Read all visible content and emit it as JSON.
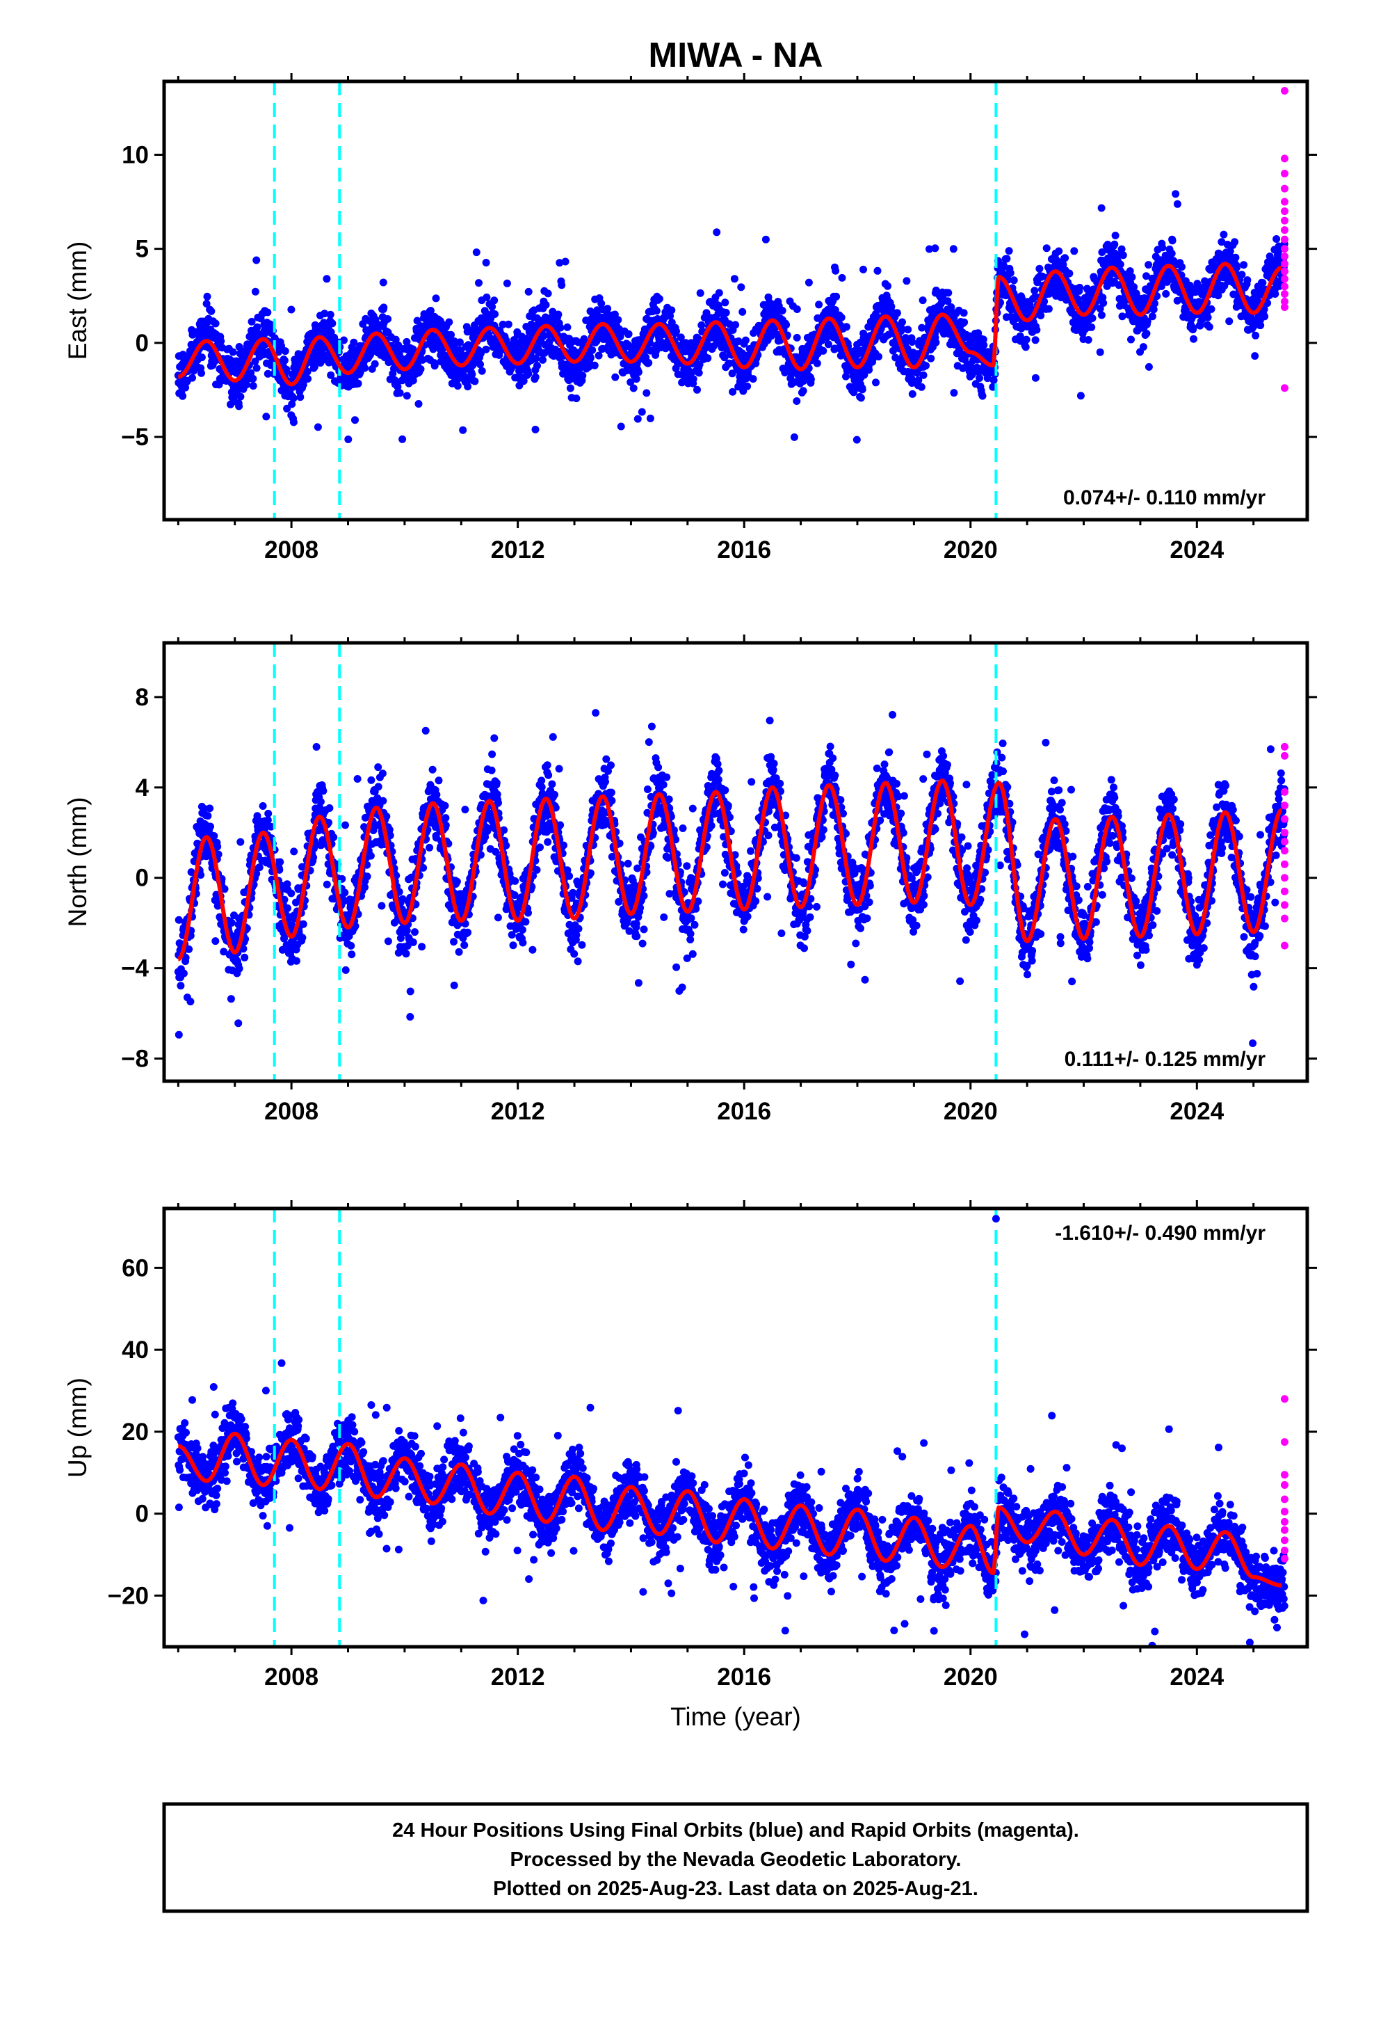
{
  "title": "MIWA - NA",
  "xlabel": "Time (year)",
  "footer": {
    "lines": [
      "24 Hour Positions Using Final Orbits (blue) and Rapid Orbits (magenta).",
      "Processed by the Nevada Geodetic Laboratory.",
      "Plotted on 2025-Aug-23. Last data on 2025-Aug-21."
    ]
  },
  "colors": {
    "final_orbits": "#0000ff",
    "rapid_orbits": "#ff00ff",
    "model_fit": "#ff0000",
    "equipment_change": "#00ffff",
    "frame": "#000000"
  },
  "chart_data": [
    {
      "type": "scatter",
      "component": "east",
      "ylabel": "East (mm)",
      "xlim": [
        2005.75,
        2025.95
      ],
      "ylim": [
        -9.4,
        13.9
      ],
      "x_ticks": [
        2008,
        2012,
        2016,
        2020,
        2024
      ],
      "y_ticks": [
        -5,
        0,
        5,
        10
      ],
      "rate_label": "0.074+/- 0.110 mm/yr",
      "rate_position": "bottom-right",
      "equipment_changes": [
        2007.7,
        2008.85,
        2020.45
      ],
      "rapid_points": [
        13.4,
        9.8,
        9.0,
        8.2,
        7.5,
        7.0,
        6.5,
        6.0,
        5.5,
        5.0,
        4.6,
        4.2,
        3.8,
        3.4,
        3.0,
        2.6,
        2.2,
        1.9,
        -2.4
      ],
      "series": [
        {
          "kind": "model",
          "x": [
            2006.0,
            2006.5,
            2007.0,
            2007.5,
            2008.0,
            2008.5,
            2009.0,
            2009.5,
            2010.0,
            2010.5,
            2011.0,
            2011.5,
            2012.0,
            2012.5,
            2013.0,
            2013.5,
            2014.0,
            2014.5,
            2015.0,
            2015.5,
            2016.0,
            2016.5,
            2017.0,
            2017.5,
            2018.0,
            2018.5,
            2019.0,
            2019.5,
            2020.0,
            2020.4,
            2020.5,
            2021.0,
            2021.5,
            2022.0,
            2022.5,
            2023.0,
            2023.5,
            2024.0,
            2024.5,
            2025.0,
            2025.5
          ],
          "values": [
            -1.8,
            0.1,
            -2.0,
            0.2,
            -2.2,
            0.3,
            -1.6,
            0.5,
            -1.4,
            0.7,
            -1.2,
            0.8,
            -1.1,
            0.9,
            -1.0,
            1.0,
            -1.0,
            1.0,
            -1.1,
            1.1,
            -1.3,
            1.2,
            -1.4,
            1.3,
            -1.3,
            1.4,
            -1.3,
            1.5,
            -0.5,
            -1.2,
            3.5,
            1.2,
            3.8,
            1.5,
            4.0,
            1.5,
            4.1,
            1.6,
            4.2,
            1.6,
            4.0
          ]
        }
      ]
    },
    {
      "type": "scatter",
      "component": "north",
      "ylabel": "North (mm)",
      "xlim": [
        2005.75,
        2025.95
      ],
      "ylim": [
        -9.0,
        10.4
      ],
      "x_ticks": [
        2008,
        2012,
        2016,
        2020,
        2024
      ],
      "y_ticks": [
        -8,
        -4,
        0,
        4,
        8
      ],
      "rate_label": "0.111+/- 0.125 mm/yr",
      "rate_position": "bottom-right",
      "equipment_changes": [
        2007.7,
        2008.85,
        2020.45
      ],
      "rapid_points": [
        5.8,
        5.4,
        3.8,
        3.2,
        2.6,
        2.0,
        1.6,
        1.2,
        0.6,
        0.0,
        -0.6,
        -1.2,
        -1.8,
        -3.0
      ],
      "series": [
        {
          "kind": "model",
          "x": [
            2006.0,
            2006.5,
            2007.0,
            2007.5,
            2008.0,
            2008.5,
            2009.0,
            2009.5,
            2010.0,
            2010.5,
            2011.0,
            2011.5,
            2012.0,
            2012.5,
            2013.0,
            2013.5,
            2014.0,
            2014.5,
            2015.0,
            2015.5,
            2016.0,
            2016.5,
            2017.0,
            2017.5,
            2018.0,
            2018.5,
            2019.0,
            2019.5,
            2020.0,
            2020.5,
            2021.0,
            2021.5,
            2022.0,
            2022.5,
            2023.0,
            2023.5,
            2024.0,
            2024.5,
            2025.0,
            2025.5
          ],
          "values": [
            -3.6,
            1.8,
            -3.3,
            2.0,
            -2.6,
            2.7,
            -2.2,
            3.1,
            -2.0,
            3.3,
            -1.9,
            3.4,
            -1.9,
            3.5,
            -1.8,
            3.6,
            -1.6,
            3.7,
            -1.5,
            3.8,
            -1.4,
            4.0,
            -1.3,
            4.1,
            -1.2,
            4.2,
            -1.1,
            4.3,
            -1.2,
            4.2,
            -2.8,
            2.6,
            -2.7,
            2.7,
            -2.6,
            2.8,
            -2.5,
            2.9,
            -2.4,
            3.0
          ]
        }
      ]
    },
    {
      "type": "scatter",
      "component": "up",
      "ylabel": "Up (mm)",
      "xlim": [
        2005.75,
        2025.95
      ],
      "ylim": [
        -32.5,
        74.5
      ],
      "x_ticks": [
        2008,
        2012,
        2016,
        2020,
        2024
      ],
      "y_ticks": [
        -20,
        0,
        20,
        40,
        60
      ],
      "rate_label": "-1.610+/- 0.490 mm/yr",
      "rate_position": "top-right",
      "equipment_changes": [
        2007.7,
        2008.85,
        2020.45
      ],
      "rapid_points": [
        28.0,
        17.5,
        9.5,
        7.0,
        3.5,
        0.5,
        -2.0,
        -4.0,
        -6.5,
        -9.0,
        -11.0
      ],
      "outliers": [
        {
          "x": 2020.45,
          "y": 72.0
        }
      ],
      "series": [
        {
          "kind": "model",
          "x": [
            2006.0,
            2006.5,
            2007.0,
            2007.5,
            2008.0,
            2008.5,
            2009.0,
            2009.5,
            2010.0,
            2010.5,
            2011.0,
            2011.5,
            2012.0,
            2012.5,
            2013.0,
            2013.5,
            2014.0,
            2014.5,
            2015.0,
            2015.5,
            2016.0,
            2016.5,
            2017.0,
            2017.5,
            2018.0,
            2018.5,
            2019.0,
            2019.5,
            2020.0,
            2020.4,
            2020.5,
            2021.0,
            2021.5,
            2022.0,
            2022.5,
            2023.0,
            2023.5,
            2024.0,
            2024.5,
            2025.0,
            2025.5
          ],
          "values": [
            16.5,
            8.0,
            19.5,
            7.0,
            18.0,
            6.0,
            17.0,
            4.0,
            13.5,
            2.5,
            12.0,
            0.0,
            10.0,
            -2.0,
            9.0,
            -4.0,
            6.5,
            -5.0,
            5.5,
            -7.0,
            3.5,
            -8.5,
            2.0,
            -10.0,
            1.0,
            -11.5,
            -1.0,
            -13.0,
            -3.0,
            -14.5,
            1.5,
            -7.0,
            0.5,
            -10.0,
            -1.5,
            -12.5,
            -3.0,
            -13.5,
            -4.5,
            -15.5,
            -17.5
          ]
        }
      ]
    }
  ]
}
